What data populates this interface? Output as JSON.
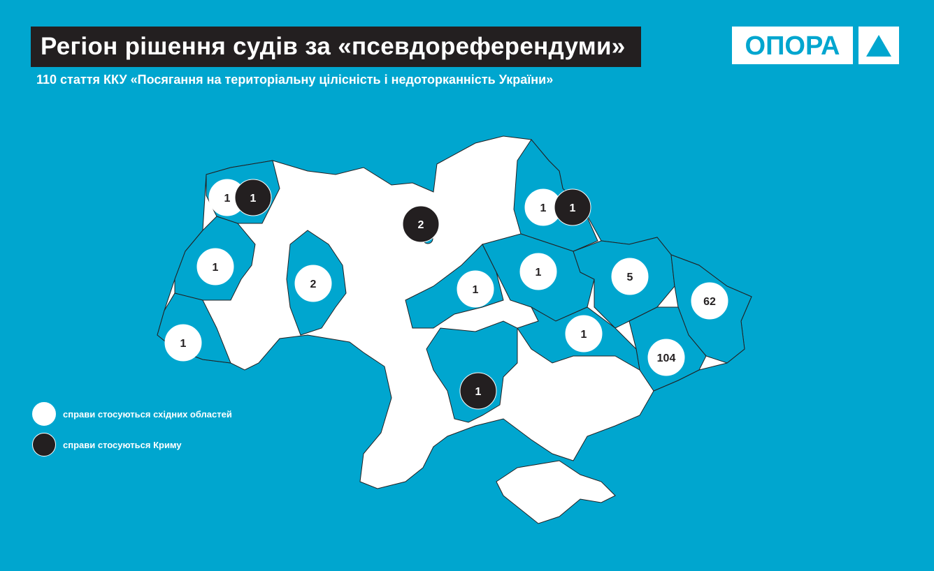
{
  "header": {
    "title": "Регіон рішення судів за «псевдореферендуми»",
    "subtitle": "110 стаття ККУ «Посягання на територіальну цілісність і недоторканність України»"
  },
  "logo": {
    "text": "ОПОРА",
    "icon": "triangle-icon"
  },
  "colors": {
    "background": "#00a6cf",
    "east": "#ffffff",
    "crimea": "#231f20"
  },
  "markers": [
    {
      "region": "Волинська",
      "east": 1,
      "crimea": 1
    },
    {
      "region": "Львівська",
      "east": 1
    },
    {
      "region": "Закарпатська",
      "east": 1
    },
    {
      "region": "Хмельницька",
      "east": 2
    },
    {
      "region": "Київ",
      "crimea": 2
    },
    {
      "region": "Сумська",
      "east": 1,
      "crimea": 1
    },
    {
      "region": "Черкаська",
      "east": 1
    },
    {
      "region": "Полтавська",
      "east": 1
    },
    {
      "region": "Харківська",
      "east": 5
    },
    {
      "region": "Луганська",
      "east": 62
    },
    {
      "region": "Дніпропетровська",
      "east": 1
    },
    {
      "region": "Донецька",
      "east": 104
    },
    {
      "region": "Миколаївська",
      "crimea": 1
    }
  ],
  "legend": [
    {
      "label": "справи стосуються східних областей",
      "color": "#ffffff"
    },
    {
      "label": "справи стосуються Криму",
      "color": "#231f20"
    }
  ]
}
